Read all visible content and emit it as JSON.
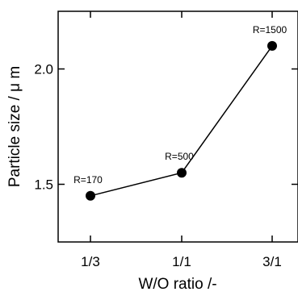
{
  "chart_data": {
    "type": "line",
    "categories": [
      "1/3",
      "1/1",
      "3/1"
    ],
    "series": [
      {
        "values": [
          1.45,
          1.55,
          2.1
        ],
        "point_labels": [
          "R=170",
          "R=500",
          "R=1500"
        ]
      }
    ],
    "xlabel": "W/O ratio  /-",
    "ylabel": "Particle size  / μ m",
    "ylim": [
      1.25,
      2.25
    ],
    "yticks": [
      1.5,
      2.0
    ],
    "ytick_labels": [
      "1.5",
      "2.0"
    ],
    "grid": false,
    "colors": {
      "line": "#000000",
      "marker": "#000000"
    }
  }
}
